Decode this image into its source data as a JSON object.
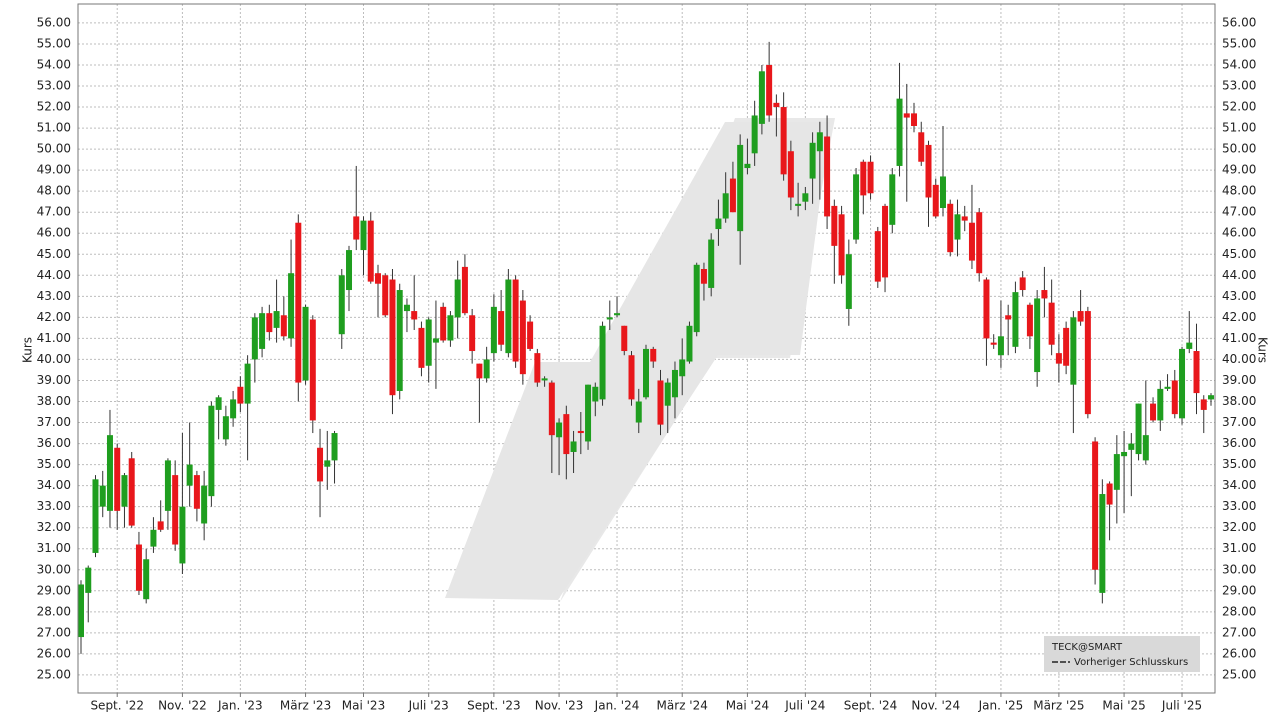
{
  "chart_data": {
    "type": "candlestick",
    "y_label": "Kurs",
    "up_color": "#1f9e1f",
    "down_color": "#e8171b",
    "grid": true,
    "ylim": [
      24.14,
      56.9
    ],
    "yticks": [
      {
        "value": 25,
        "label": "25.00"
      },
      {
        "value": 26,
        "label": "26.00"
      },
      {
        "value": 27,
        "label": "27.00"
      },
      {
        "value": 28,
        "label": "28.00"
      },
      {
        "value": 29,
        "label": "29.00"
      },
      {
        "value": 30,
        "label": "30.00"
      },
      {
        "value": 31,
        "label": "31.00"
      },
      {
        "value": 32,
        "label": "32.00"
      },
      {
        "value": 33,
        "label": "33.00"
      },
      {
        "value": 34,
        "label": "34.00"
      },
      {
        "value": 35,
        "label": "35.00"
      },
      {
        "value": 36,
        "label": "36.00"
      },
      {
        "value": 37,
        "label": "37.00"
      },
      {
        "value": 38,
        "label": "38.00"
      },
      {
        "value": 39,
        "label": "39.00"
      },
      {
        "value": 40,
        "label": "40.00"
      },
      {
        "value": 41,
        "label": "41.00"
      },
      {
        "value": 42,
        "label": "42.00"
      },
      {
        "value": 43,
        "label": "43.00"
      },
      {
        "value": 44,
        "label": "44.00"
      },
      {
        "value": 45,
        "label": "45.00"
      },
      {
        "value": 46,
        "label": "46.00"
      },
      {
        "value": 47,
        "label": "47.00"
      },
      {
        "value": 48,
        "label": "48.00"
      },
      {
        "value": 49,
        "label": "49.00"
      },
      {
        "value": 50,
        "label": "50.00"
      },
      {
        "value": 51,
        "label": "51.00"
      },
      {
        "value": 52,
        "label": "52.00"
      },
      {
        "value": 53,
        "label": "53.00"
      },
      {
        "value": 54,
        "label": "54.00"
      },
      {
        "value": 55,
        "label": "55.00"
      },
      {
        "value": 56,
        "label": "56.00"
      }
    ],
    "categories": [
      null,
      null,
      null,
      null,
      null,
      "Sept. '22",
      null,
      null,
      null,
      null,
      null,
      null,
      null,
      null,
      "Nov. '22",
      null,
      null,
      null,
      null,
      null,
      null,
      null,
      "Jan. '23",
      null,
      null,
      null,
      null,
      null,
      null,
      null,
      null,
      "März '23",
      null,
      null,
      null,
      null,
      null,
      null,
      null,
      "Mai '23",
      null,
      null,
      null,
      null,
      null,
      null,
      null,
      null,
      "Juli '23",
      null,
      null,
      null,
      null,
      null,
      null,
      null,
      null,
      "Sept. '23",
      null,
      null,
      null,
      null,
      null,
      null,
      null,
      null,
      "Nov. '23",
      null,
      null,
      null,
      null,
      null,
      null,
      null,
      "Jan. '24",
      null,
      null,
      null,
      null,
      null,
      null,
      null,
      null,
      "März '24",
      null,
      null,
      null,
      null,
      null,
      null,
      null,
      null,
      "Mai '24",
      null,
      null,
      null,
      null,
      null,
      null,
      null,
      "Juli '24",
      null,
      null,
      null,
      null,
      null,
      null,
      null,
      null,
      "Sept. '24",
      null,
      null,
      null,
      null,
      null,
      null,
      null,
      null,
      "Nov. '24",
      null,
      null,
      null,
      null,
      null,
      null,
      null,
      null,
      "Jan. '25",
      null,
      null,
      null,
      null,
      null,
      null,
      null,
      "März '25",
      null,
      null,
      null,
      null,
      null,
      null,
      null,
      null,
      "Mai '25",
      null,
      null,
      null,
      null,
      null,
      null,
      null,
      "Juli '25",
      null,
      null,
      null,
      null
    ],
    "open": [
      26.8,
      28.9,
      30.8,
      33.0,
      32.8,
      35.8,
      33.0,
      35.3,
      31.2,
      28.6,
      31.1,
      32.3,
      32.8,
      34.5,
      30.3,
      34.0,
      34.5,
      32.2,
      33.5,
      37.6,
      36.2,
      37.2,
      38.7,
      37.9,
      40.0,
      40.5,
      42.2,
      41.5,
      42.1,
      41.0,
      46.5,
      39.0,
      41.9,
      35.8,
      34.9,
      35.2,
      41.2,
      43.3,
      46.8,
      45.2,
      46.6,
      44.1,
      44.0,
      43.8,
      38.5,
      42.3,
      42.3,
      41.5,
      39.7,
      40.8,
      42.5,
      40.9,
      42.0,
      44.4,
      42.1,
      39.8,
      39.1,
      40.3,
      42.3,
      40.3,
      43.8,
      42.8,
      41.8,
      40.3,
      39.0,
      38.9,
      36.3,
      37.4,
      35.6,
      36.6,
      36.1,
      38.0,
      38.1,
      41.9,
      42.1,
      41.6,
      40.2,
      37.0,
      38.2,
      40.5,
      39.0,
      37.8,
      38.2,
      39.2,
      39.9,
      41.3,
      44.3,
      43.4,
      46.2,
      46.7,
      48.6,
      46.1,
      49.1,
      49.8,
      51.2,
      54.0,
      52.2,
      52.0,
      49.9,
      47.3,
      47.5,
      48.6,
      49.9,
      50.6,
      47.3,
      46.9,
      42.4,
      45.7,
      49.4,
      49.4,
      46.1,
      47.3,
      46.4,
      49.2,
      51.7,
      51.7,
      50.8,
      50.2,
      48.3,
      47.2,
      47.4,
      45.7,
      46.8,
      46.5,
      47.0,
      43.8,
      40.8,
      40.2,
      42.1,
      40.6,
      43.9,
      42.6,
      39.4,
      43.3,
      42.7,
      40.3,
      41.5,
      38.8,
      42.3,
      42.3,
      36.1,
      28.9,
      34.1,
      33.8,
      35.4,
      35.7,
      35.5,
      35.2,
      37.9,
      37.1,
      38.6,
      39.0,
      37.2,
      40.5,
      40.4,
      38.1,
      38.1
    ],
    "high": [
      29.5,
      30.2,
      34.5,
      34.7,
      37.6,
      36.0,
      34.6,
      35.6,
      31.8,
      31.0,
      32.5,
      33.3,
      35.3,
      35.2,
      36.5,
      37.0,
      34.7,
      34.7,
      38.0,
      38.3,
      37.8,
      38.5,
      39.2,
      40.2,
      42.2,
      42.5,
      42.6,
      43.8,
      43.0,
      45.7,
      46.9,
      42.6,
      42.1,
      36.7,
      36.6,
      36.6,
      44.3,
      45.4,
      49.2,
      46.8,
      47.0,
      44.5,
      44.1,
      44.3,
      43.6,
      42.9,
      44.0,
      41.8,
      42.0,
      42.8,
      42.7,
      42.3,
      44.7,
      45.0,
      42.4,
      39.8,
      40.6,
      43.1,
      43.3,
      44.3,
      44.0,
      43.3,
      42.1,
      40.5,
      39.2,
      39.0,
      37.2,
      37.8,
      36.6,
      37.5,
      38.8,
      38.9,
      41.8,
      42.8,
      43.0,
      41.6,
      40.4,
      38.6,
      40.7,
      40.6,
      39.5,
      39.1,
      39.9,
      41.0,
      41.8,
      44.6,
      44.6,
      46.0,
      47.6,
      48.9,
      49.4,
      50.7,
      50.5,
      52.3,
      54.0,
      55.1,
      52.6,
      52.7,
      50.4,
      48.4,
      48.2,
      50.8,
      51.3,
      51.6,
      47.6,
      47.3,
      45.7,
      49.1,
      49.5,
      49.7,
      46.3,
      47.4,
      49.1,
      54.1,
      53.1,
      52.2,
      51.3,
      50.4,
      48.6,
      51.1,
      47.6,
      47.6,
      47.3,
      48.3,
      47.2,
      43.9,
      41.2,
      42.8,
      42.6,
      43.7,
      44.2,
      42.7,
      43.3,
      44.4,
      43.8,
      41.2,
      41.8,
      42.3,
      43.3,
      42.5,
      36.3,
      34.3,
      34.2,
      36.4,
      36.6,
      36.5,
      37.9,
      39.0,
      38.2,
      39.0,
      39.3,
      39.5,
      40.6,
      42.3,
      41.7,
      38.3,
      38.4
    ],
    "low": [
      26.0,
      27.5,
      30.6,
      32.5,
      32.0,
      31.9,
      32.0,
      32.0,
      28.8,
      28.4,
      30.8,
      31.8,
      31.9,
      30.9,
      29.8,
      33.0,
      32.3,
      31.4,
      33.0,
      36.2,
      35.9,
      36.8,
      37.5,
      35.2,
      38.9,
      40.1,
      40.9,
      40.8,
      40.9,
      40.6,
      38.0,
      38.8,
      36.5,
      32.5,
      33.8,
      34.1,
      40.5,
      42.3,
      45.2,
      44.0,
      43.6,
      42.0,
      42.0,
      37.4,
      38.1,
      41.3,
      41.4,
      39.2,
      38.9,
      38.6,
      40.8,
      40.6,
      41.0,
      42.1,
      39.8,
      37.0,
      38.9,
      39.9,
      40.4,
      40.1,
      39.6,
      38.8,
      40.4,
      38.7,
      38.7,
      34.6,
      34.5,
      34.3,
      34.6,
      35.5,
      35.7,
      37.3,
      37.8,
      41.4,
      42.0,
      40.2,
      37.8,
      36.5,
      38.1,
      39.6,
      36.4,
      36.5,
      37.2,
      38.3,
      39.8,
      41.1,
      42.8,
      43.0,
      45.4,
      46.5,
      47.0,
      44.5,
      48.8,
      49.2,
      50.7,
      51.3,
      50.6,
      48.5,
      47.1,
      46.8,
      47.1,
      47.4,
      47.6,
      46.2,
      43.6,
      43.6,
      41.6,
      45.5,
      46.9,
      47.6,
      43.4,
      43.2,
      46.0,
      48.7,
      47.5,
      50.8,
      49.2,
      46.3,
      46.7,
      46.8,
      44.9,
      44.9,
      46.1,
      44.3,
      43.7,
      39.7,
      40.5,
      39.6,
      40.2,
      40.3,
      43.0,
      40.5,
      38.7,
      42.0,
      40.2,
      38.9,
      39.3,
      36.5,
      41.6,
      37.2,
      29.3,
      28.4,
      31.4,
      32.2,
      32.7,
      33.5,
      35.2,
      35.0,
      37.0,
      36.6,
      38.5,
      37.2,
      36.9,
      40.3,
      37.4,
      36.5,
      37.8
    ],
    "close": [
      29.3,
      30.1,
      34.3,
      34.0,
      36.4,
      32.8,
      34.5,
      32.1,
      29.0,
      30.5,
      31.9,
      31.9,
      35.2,
      31.2,
      33.0,
      35.0,
      32.9,
      34.0,
      37.8,
      38.2,
      37.3,
      38.1,
      37.9,
      39.8,
      42.0,
      42.2,
      41.3,
      42.3,
      41.1,
      44.1,
      38.9,
      42.5,
      37.1,
      34.2,
      35.2,
      36.5,
      44.0,
      45.2,
      45.7,
      46.6,
      43.7,
      43.6,
      42.1,
      38.3,
      43.3,
      42.6,
      41.9,
      39.6,
      41.9,
      41.0,
      40.9,
      42.1,
      43.8,
      42.2,
      40.4,
      39.1,
      40.0,
      42.5,
      40.7,
      43.8,
      39.9,
      39.3,
      40.5,
      38.9,
      39.1,
      36.4,
      37.0,
      35.5,
      36.1,
      36.5,
      38.8,
      38.7,
      41.6,
      42.0,
      42.2,
      40.4,
      38.1,
      38.0,
      40.5,
      39.9,
      36.9,
      38.9,
      39.5,
      40.0,
      41.6,
      44.5,
      43.6,
      45.7,
      46.7,
      47.9,
      47.0,
      50.2,
      49.3,
      51.6,
      53.7,
      51.6,
      52.0,
      48.8,
      47.7,
      47.4,
      47.9,
      50.3,
      50.8,
      46.8,
      45.4,
      44.0,
      45.0,
      48.8,
      47.8,
      47.9,
      43.7,
      43.9,
      48.8,
      52.4,
      51.5,
      51.1,
      49.4,
      47.7,
      46.8,
      48.7,
      45.1,
      46.9,
      46.6,
      44.7,
      44.1,
      41.0,
      40.7,
      41.1,
      41.9,
      43.2,
      43.3,
      41.1,
      42.9,
      42.9,
      40.7,
      39.8,
      39.7,
      42.0,
      41.8,
      37.4,
      30.0,
      33.6,
      33.1,
      35.5,
      35.6,
      36.0,
      37.9,
      36.4,
      37.1,
      38.6,
      38.7,
      37.4,
      40.5,
      40.8,
      38.4,
      37.6,
      38.3
    ],
    "legend": {
      "title": "TECK@SMART",
      "items": [
        "Vorheriger Schlusskurs"
      ]
    }
  }
}
